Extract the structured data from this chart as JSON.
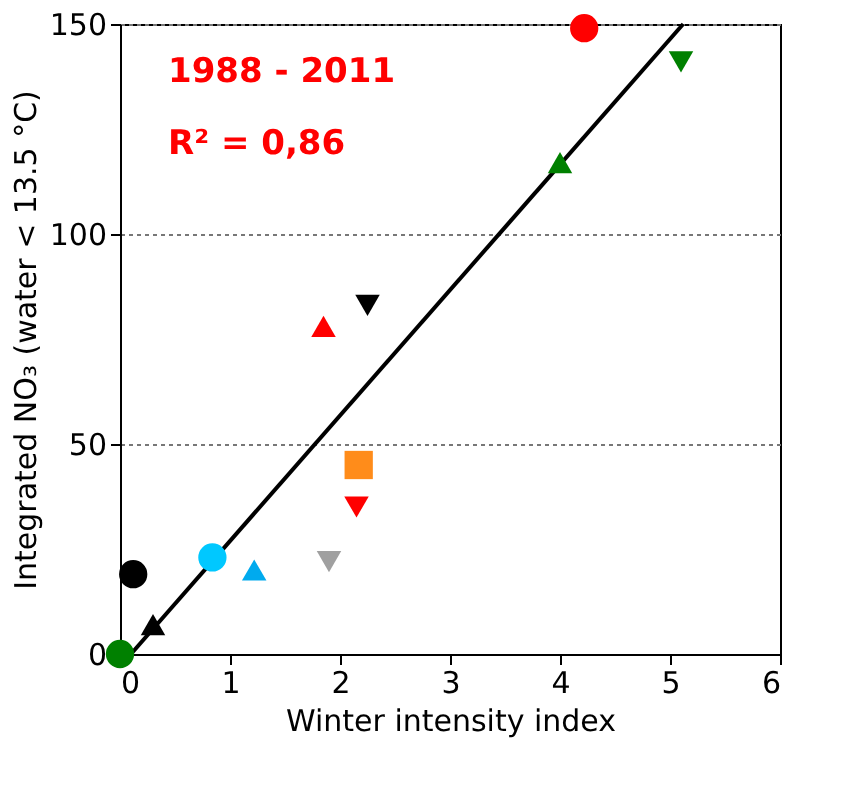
{
  "chart_data": {
    "type": "scatter",
    "xlabel": "Winter intensity index",
    "ylabel": "Integrated NO₃  (water < 13.5 °C)",
    "xlim": [
      0,
      6
    ],
    "xticks": [
      0,
      1,
      2,
      3,
      4,
      5,
      6
    ],
    "ylim": [
      0,
      150
    ],
    "yticks": [
      0,
      50,
      100,
      150
    ],
    "grid": "y",
    "annotations": [
      "1988 - 2011",
      "R² = 0,86"
    ],
    "series": [
      {
        "color": "#008000",
        "marker": "circle",
        "x": [
          0
        ],
        "values": [
          0
        ]
      },
      {
        "color": "#000000",
        "marker": "circle",
        "x": [
          0.12
        ],
        "values": [
          19
        ]
      },
      {
        "color": "#000000",
        "marker": "triangle",
        "x": [
          0.3
        ],
        "values": [
          7
        ]
      },
      {
        "color": "#00c8ff",
        "marker": "circle",
        "x": [
          0.84
        ],
        "values": [
          23
        ]
      },
      {
        "color": "#00aaee",
        "marker": "triangle",
        "x": [
          1.22
        ],
        "values": [
          20
        ]
      },
      {
        "color": "#a0a0a0",
        "marker": "triangle-down",
        "x": [
          1.9
        ],
        "values": [
          22
        ]
      },
      {
        "color": "#ff0000",
        "marker": "triangle-down",
        "x": [
          2.15
        ],
        "values": [
          35
        ]
      },
      {
        "color": "#ff8c1a",
        "marker": "square",
        "x": [
          2.17
        ],
        "values": [
          45
        ]
      },
      {
        "color": "#ff0000",
        "marker": "triangle",
        "x": [
          1.85
        ],
        "values": [
          78
        ]
      },
      {
        "color": "#000000",
        "marker": "triangle-down",
        "x": [
          2.25
        ],
        "values": [
          83
        ]
      },
      {
        "color": "#008000",
        "marker": "triangle",
        "x": [
          4.0
        ],
        "values": [
          117
        ]
      },
      {
        "color": "#ff0000",
        "marker": "circle",
        "x": [
          4.22
        ],
        "values": [
          149
        ]
      },
      {
        "color": "#008000",
        "marker": "triangle-down",
        "x": [
          5.1
        ],
        "values": [
          141
        ]
      },
      {
        "type": "line",
        "color": "#000000",
        "line_style": "solid",
        "x": [
          0.1,
          5.12
        ],
        "values": [
          0,
          150
        ]
      }
    ]
  }
}
